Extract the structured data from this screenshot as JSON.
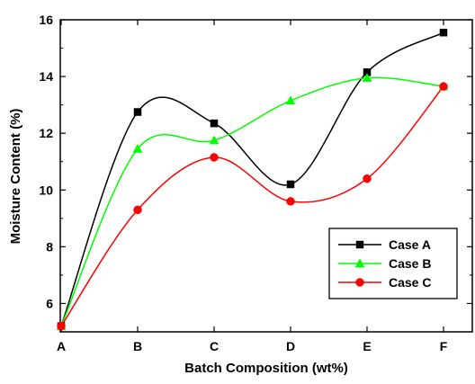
{
  "chart_data": {
    "type": "line",
    "title": "",
    "xlabel": "Batch Composition (wt%)",
    "ylabel": "Moisture Content (%)",
    "categories": [
      "A",
      "B",
      "C",
      "D",
      "E",
      "F"
    ],
    "ylim": [
      5,
      16
    ],
    "yticks": [
      6,
      8,
      10,
      12,
      14,
      16
    ],
    "grid": false,
    "legend_position": "bottom-right",
    "smooth": true,
    "series": [
      {
        "name": "Case A",
        "color": "#000000",
        "marker": "square",
        "values": [
          5.2,
          12.75,
          12.35,
          10.2,
          14.15,
          15.55
        ]
      },
      {
        "name": "Case B",
        "color": "#00ff00",
        "marker": "triangle",
        "values": [
          5.2,
          11.45,
          11.75,
          13.15,
          13.95,
          13.65
        ]
      },
      {
        "name": "Case C",
        "color": "#ff0000",
        "marker": "circle",
        "values": [
          5.2,
          9.3,
          11.15,
          9.6,
          10.4,
          13.65
        ]
      }
    ]
  }
}
